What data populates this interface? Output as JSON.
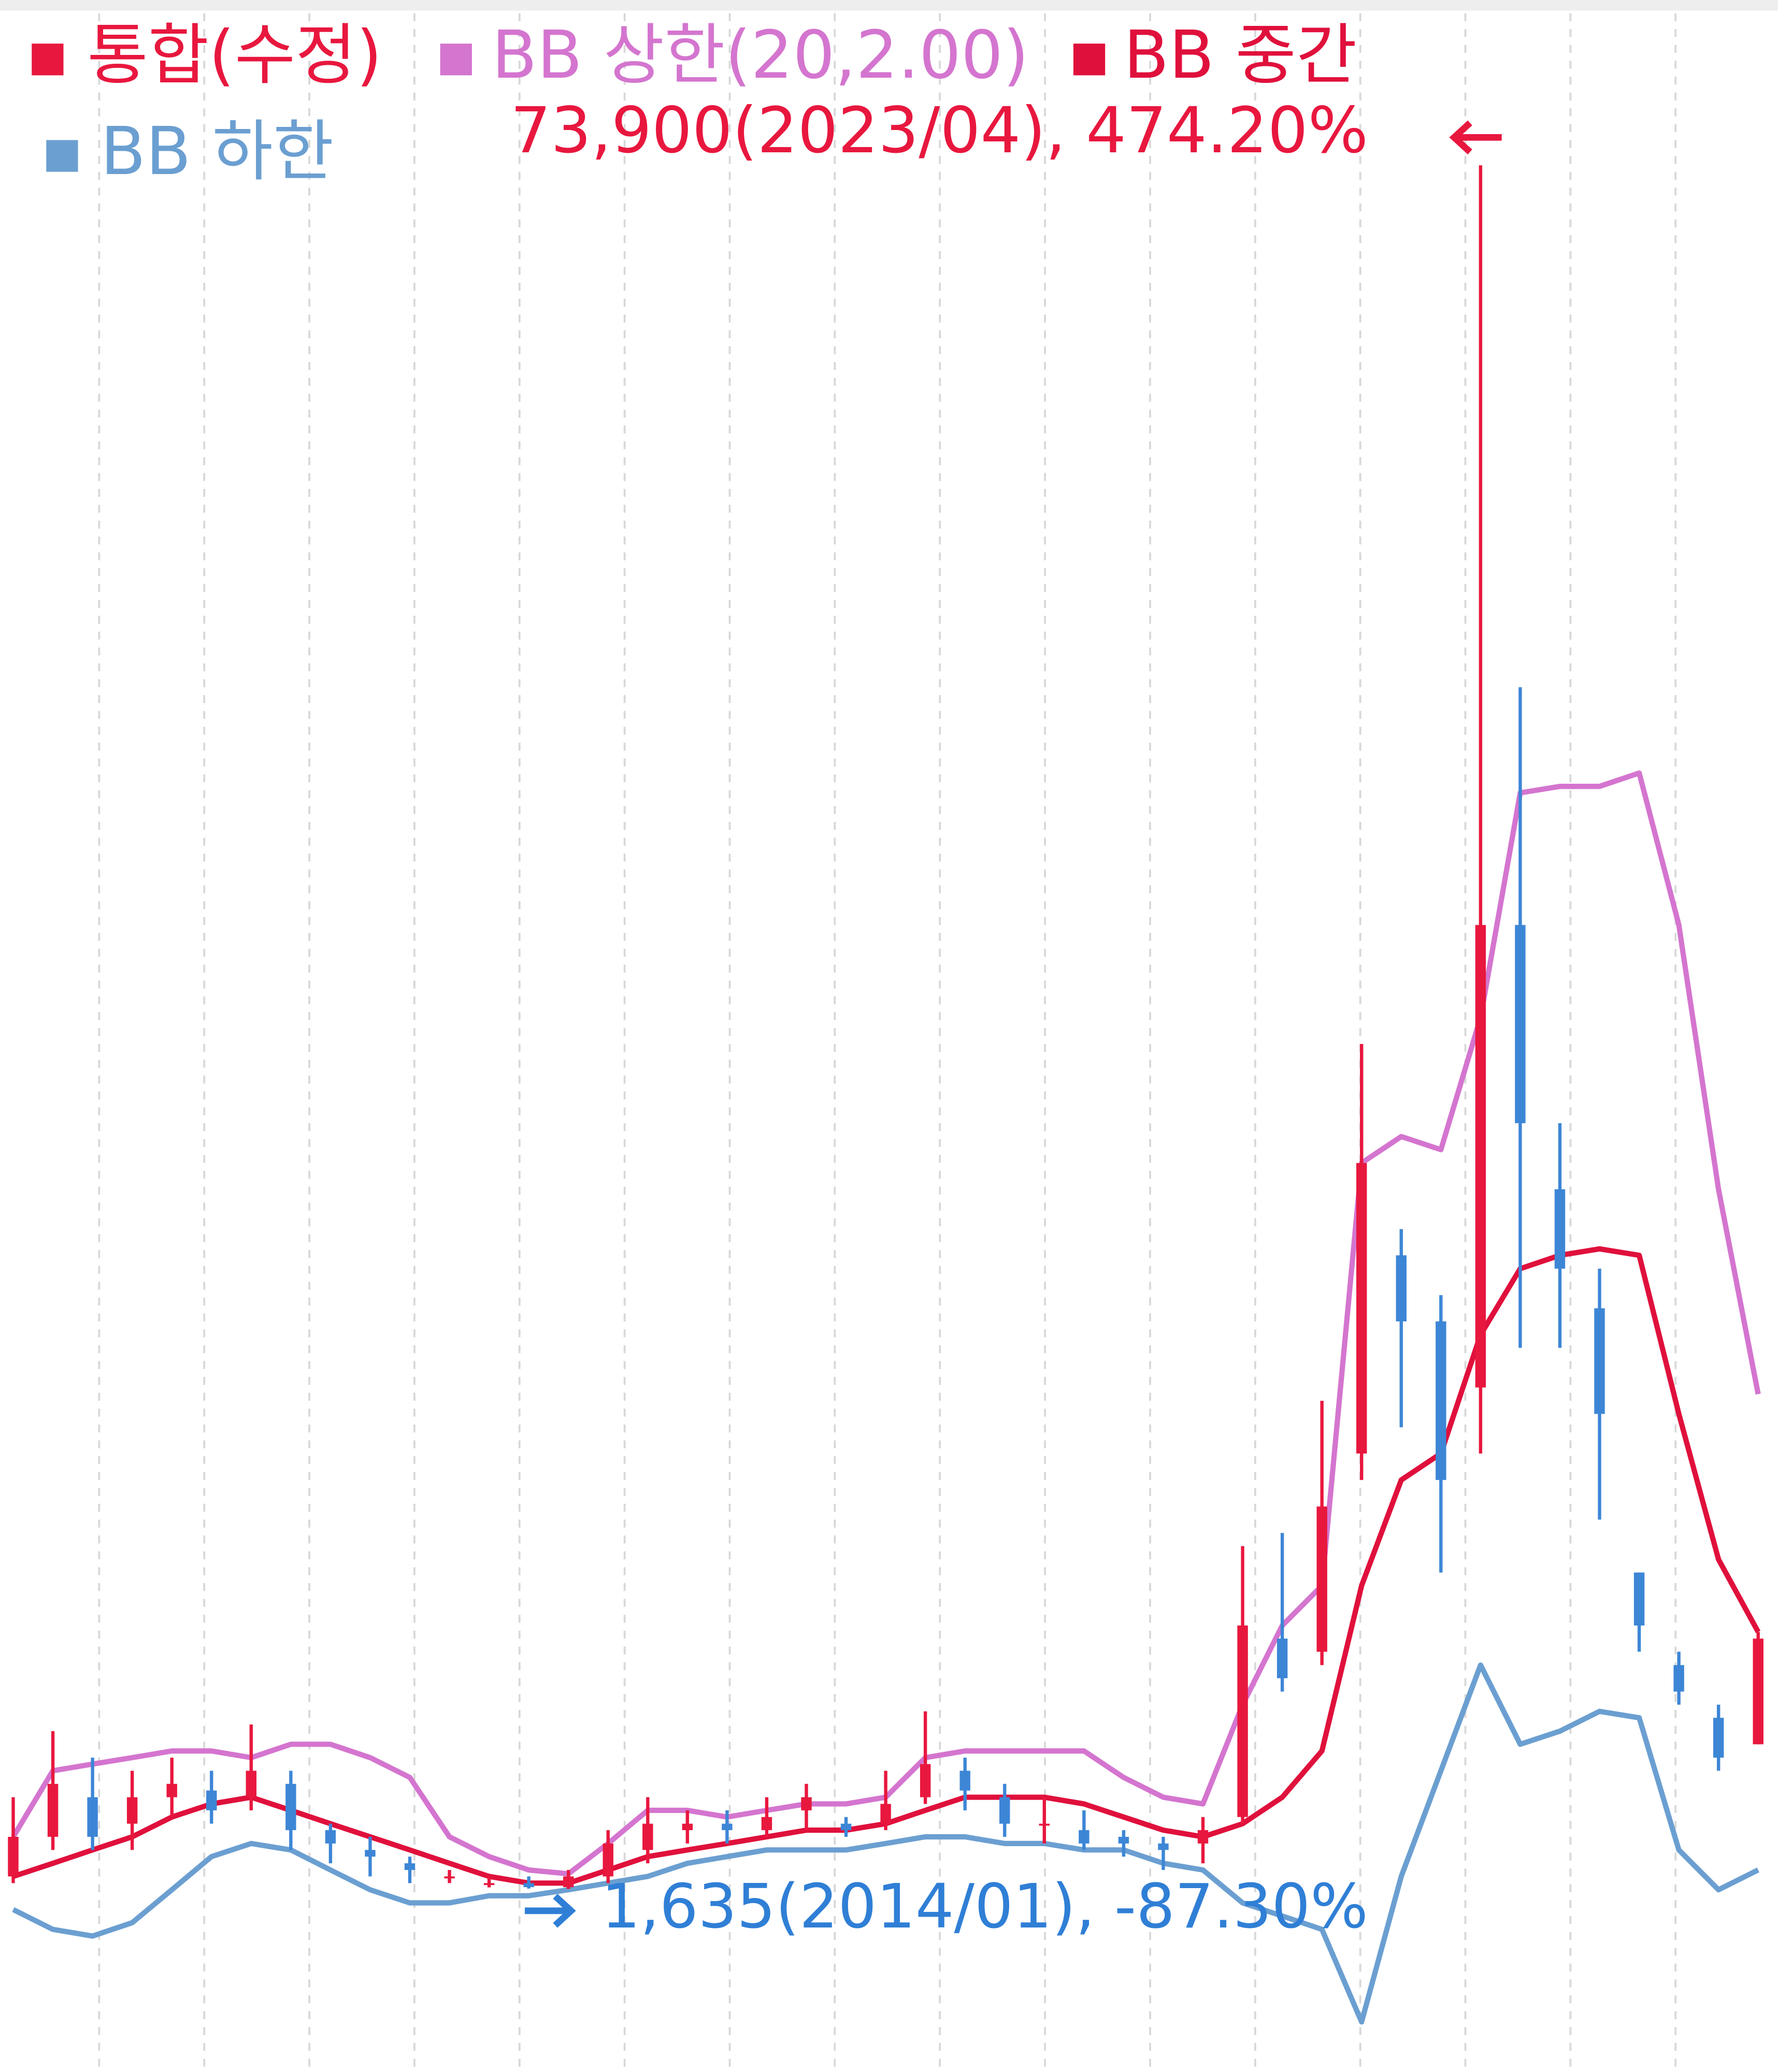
{
  "chart_data": {
    "type": "candlestick",
    "name": "통합(수정)",
    "color": "#e8173e",
    "down_color": "#3d86d6",
    "open": [
      2160,
      3820,
      5480,
      4370,
      5480,
      5760,
      5480,
      6040,
      4100,
      3270,
      2710,
      2160,
      1880,
      1880,
      1710,
      2160,
      3270,
      4100,
      4370,
      4100,
      4930,
      4370,
      4370,
      5480,
      6590,
      5480,
      4370,
      4100,
      3820,
      3540,
      3540,
      4650,
      12130,
      11580,
      19890,
      28200,
      25430,
      22660,
      42050,
      30970,
      25980,
      14900,
      11020,
      8810,
      7700
    ],
    "high": [
      5480,
      8250,
      7140,
      6590,
      7140,
      6590,
      8530,
      6590,
      4370,
      3820,
      2990,
      2430,
      2160,
      2160,
      2430,
      4100,
      5480,
      4930,
      4930,
      5480,
      6040,
      4650,
      6590,
      9080,
      7140,
      6040,
      5480,
      4930,
      4100,
      3820,
      4650,
      16010,
      16560,
      22100,
      37060,
      29300,
      26530,
      73900,
      52020,
      33740,
      27640,
      14900,
      11580,
      9360,
      12410
    ],
    "low": [
      1880,
      3270,
      3270,
      3270,
      4650,
      4370,
      4930,
      3270,
      2710,
      2160,
      1880,
      1880,
      1700,
      1650,
      1635,
      1880,
      2710,
      3540,
      3540,
      3820,
      4100,
      3820,
      4100,
      5200,
      4930,
      3820,
      3540,
      3270,
      2990,
      2430,
      2710,
      4370,
      9910,
      11020,
      18780,
      20990,
      14900,
      19890,
      24320,
      24320,
      17120,
      11580,
      9360,
      6590,
      7700
    ],
    "close": [
      3820,
      6040,
      3820,
      5480,
      6040,
      4930,
      6590,
      4100,
      3540,
      2990,
      2430,
      2160,
      1880,
      1710,
      2160,
      3540,
      4370,
      4370,
      4100,
      4650,
      5480,
      4100,
      5200,
      6870,
      5760,
      4370,
      4370,
      3540,
      3540,
      3270,
      4100,
      12680,
      10470,
      17670,
      32070,
      25430,
      18780,
      42050,
      33740,
      27640,
      21550,
      12680,
      9910,
      7140,
      12130
    ],
    "series": [
      {
        "name": "BB 상한(20,2.00)",
        "color": "#d475cf",
        "values": [
          3820,
          6590,
          6870,
          7140,
          7420,
          7420,
          7140,
          7700,
          7700,
          7140,
          6310,
          3820,
          2990,
          2430,
          2270,
          3540,
          4930,
          4930,
          4650,
          4930,
          5200,
          5200,
          5480,
          7140,
          7420,
          7420,
          7420,
          7420,
          6310,
          5480,
          5200,
          9360,
          12680,
          14350,
          32070,
          33180,
          32630,
          38170,
          47590,
          47860,
          47860,
          48420,
          42050,
          30970,
          22380
        ]
      },
      {
        "name": "BB 중간",
        "color": "#e0103c",
        "values": [
          2160,
          2710,
          3270,
          3820,
          4650,
          5200,
          5480,
          4930,
          4370,
          3820,
          3270,
          2710,
          2160,
          1880,
          1880,
          2430,
          2990,
          3270,
          3540,
          3820,
          4100,
          4100,
          4370,
          4930,
          5480,
          5480,
          5480,
          5200,
          4650,
          4100,
          3820,
          4370,
          5480,
          7420,
          14350,
          18780,
          19890,
          24870,
          27640,
          28200,
          28470,
          28200,
          21550,
          15450,
          12410
        ]
      },
      {
        "name": "BB 하한",
        "color": "#6b9fd1",
        "values": [
          770,
          -60,
          -340,
          220,
          1600,
          2990,
          3540,
          3270,
          2430,
          1600,
          1050,
          1050,
          1350,
          1350,
          1600,
          1880,
          2160,
          2710,
          2990,
          3270,
          3270,
          3270,
          3540,
          3820,
          3820,
          3540,
          3540,
          3270,
          3270,
          2710,
          2430,
          1050,
          500,
          -60,
          -3940,
          2160,
          6590,
          11020,
          7700,
          8250,
          9080,
          8810,
          3270,
          1600,
          2430
        ]
      }
    ],
    "ylim": [
      -6040,
      80830
    ],
    "annotations": [
      {
        "text": "73,900(2023/04), 474.20%",
        "color": "#e8173e"
      },
      {
        "text": "1,635(2014/01), -87.30%",
        "color": "#2f7fd6"
      }
    ]
  }
}
